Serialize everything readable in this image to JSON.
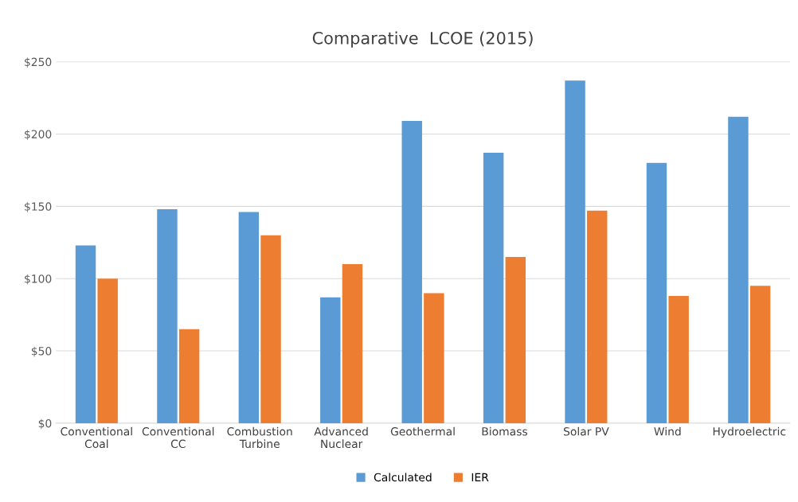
{
  "chart_data": {
    "type": "bar",
    "title": "Comparative  LCOE (2015)",
    "categories": [
      "Conventional\nCoal",
      "Conventional\nCC",
      "Combustion\nTurbine",
      "Advanced\nNuclear",
      "Geothermal",
      "Biomass",
      "Solar PV",
      "Wind",
      "Hydroelectric"
    ],
    "series": [
      {
        "name": "Calculated",
        "color": "#5b9bd5",
        "values": [
          123,
          148,
          146,
          87,
          209,
          187,
          237,
          180,
          212
        ]
      },
      {
        "name": "IER",
        "color": "#ed7d31",
        "values": [
          100,
          65,
          130,
          110,
          90,
          115,
          147,
          88,
          95
        ]
      }
    ],
    "ylim": [
      0,
      250
    ],
    "yticks": [
      {
        "value": 0,
        "label": "$0"
      },
      {
        "value": 50,
        "label": "$50"
      },
      {
        "value": 100,
        "label": "$100"
      },
      {
        "value": 150,
        "label": "$150"
      },
      {
        "value": 200,
        "label": "$200"
      },
      {
        "value": 250,
        "label": "$250"
      }
    ],
    "grid": "y",
    "legend": "bottom"
  }
}
